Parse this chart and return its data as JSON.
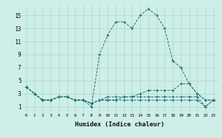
{
  "xlabel": "Humidex (Indice chaleur)",
  "ylabel": "",
  "bg_color": "#ceeee8",
  "grid_color": "#aad4cc",
  "line_color": "#1a6e6e",
  "xlim": [
    -0.5,
    23.5
  ],
  "ylim": [
    0.0,
    16.5
  ],
  "xticks": [
    0,
    1,
    2,
    3,
    4,
    5,
    6,
    7,
    8,
    9,
    10,
    11,
    12,
    13,
    14,
    15,
    16,
    17,
    18,
    19,
    20,
    21,
    22,
    23
  ],
  "yticks": [
    1,
    3,
    5,
    7,
    9,
    11,
    13,
    15
  ],
  "series": [
    [
      4,
      3,
      2,
      2,
      2.5,
      2.5,
      2,
      2,
      1,
      9,
      12,
      14,
      14,
      13,
      15,
      16,
      15,
      13,
      8,
      7,
      4.5,
      3,
      2,
      2
    ],
    [
      4,
      3,
      2,
      2,
      2.5,
      2.5,
      2,
      2,
      1.5,
      2,
      2.5,
      2.5,
      2.5,
      2.5,
      3,
      3.5,
      3.5,
      3.5,
      3.5,
      4.5,
      4.5,
      3,
      2,
      2
    ],
    [
      4,
      3,
      2,
      2,
      2.5,
      2.5,
      2,
      2,
      1.5,
      2,
      2,
      2,
      2.5,
      2.5,
      2.5,
      2.5,
      2.5,
      2.5,
      2.5,
      2.5,
      2.5,
      2.5,
      1,
      2
    ],
    [
      4,
      3,
      2,
      2,
      2.5,
      2.5,
      2,
      2,
      1.5,
      2,
      2,
      2,
      2,
      2,
      2,
      2,
      2,
      2,
      2,
      2,
      2,
      2,
      1,
      2
    ]
  ]
}
